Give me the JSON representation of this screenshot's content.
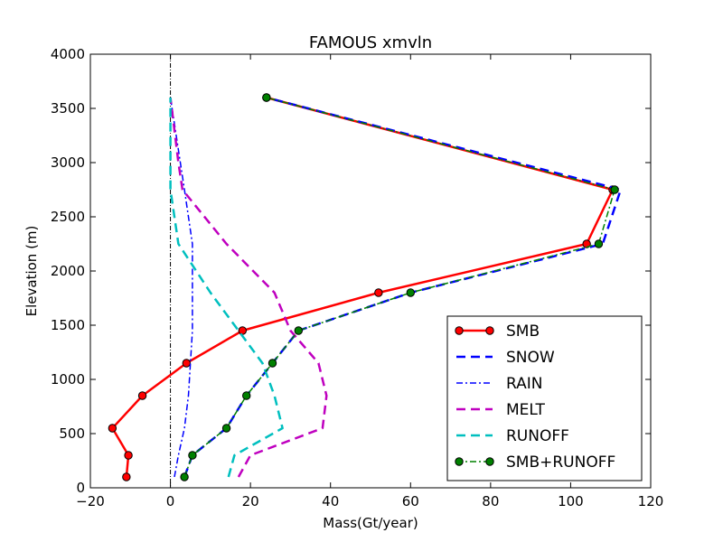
{
  "chart_data": {
    "type": "line",
    "title": "FAMOUS xmvln",
    "xlabel": "Mass(Gt/year)",
    "ylabel": "Elevation (m)",
    "xlim": [
      -20,
      120
    ],
    "ylim": [
      0,
      4000
    ],
    "xticks": [
      "−20",
      "0",
      "20",
      "40",
      "60",
      "80",
      "100",
      "120"
    ],
    "yticks": [
      "0",
      "500",
      "1000",
      "1500",
      "2000",
      "2500",
      "3000",
      "3500",
      "4000"
    ],
    "legend_position": "lower right",
    "zero_line": {
      "x": 0,
      "style": "dash-dot",
      "color": "#000000"
    },
    "series": [
      {
        "name": "SMB",
        "color": "#ff0000",
        "linestyle": "solid",
        "marker": "circle",
        "points": [
          [
            -11,
            100
          ],
          [
            -10.5,
            300
          ],
          [
            -14.5,
            550
          ],
          [
            -7,
            850
          ],
          [
            4,
            1150
          ],
          [
            18,
            1450
          ],
          [
            52,
            1800
          ],
          [
            104,
            2250
          ],
          [
            110.5,
            2750
          ],
          [
            24,
            3600
          ]
        ]
      },
      {
        "name": "SNOW",
        "color": "#0000ff",
        "linestyle": "dashed",
        "marker": "none",
        "points": [
          [
            3.5,
            100
          ],
          [
            5.5,
            300
          ],
          [
            14,
            550
          ],
          [
            19,
            850
          ],
          [
            25.5,
            1150
          ],
          [
            32,
            1450
          ],
          [
            60,
            1800
          ],
          [
            108,
            2250
          ],
          [
            112.5,
            2750
          ],
          [
            24,
            3600
          ]
        ]
      },
      {
        "name": "RAIN",
        "color": "#0000ff",
        "linestyle": "dashdot",
        "marker": "none",
        "points": [
          [
            1,
            100
          ],
          [
            2,
            300
          ],
          [
            3.5,
            550
          ],
          [
            4.5,
            850
          ],
          [
            5,
            1150
          ],
          [
            5.5,
            1450
          ],
          [
            5.5,
            1800
          ],
          [
            5.5,
            2250
          ],
          [
            3.5,
            2750
          ],
          [
            0,
            3600
          ]
        ]
      },
      {
        "name": "MELT",
        "color": "#bf00bf",
        "linestyle": "dashed",
        "marker": "none",
        "points": [
          [
            17,
            100
          ],
          [
            20,
            300
          ],
          [
            38,
            550
          ],
          [
            39,
            850
          ],
          [
            37,
            1150
          ],
          [
            30,
            1450
          ],
          [
            26,
            1800
          ],
          [
            14,
            2250
          ],
          [
            3,
            2750
          ],
          [
            2,
            3000
          ],
          [
            0,
            3600
          ]
        ]
      },
      {
        "name": "RUNOFF",
        "color": "#00bfbf",
        "linestyle": "dashed",
        "marker": "none",
        "points": [
          [
            14.5,
            100
          ],
          [
            16,
            300
          ],
          [
            28,
            550
          ],
          [
            26,
            850
          ],
          [
            23,
            1150
          ],
          [
            17,
            1450
          ],
          [
            10,
            1800
          ],
          [
            2,
            2250
          ],
          [
            0,
            2750
          ],
          [
            0,
            3600
          ]
        ]
      },
      {
        "name": "SMB+RUNOFF",
        "color": "#008000",
        "linestyle": "dashdot",
        "marker": "circle",
        "points": [
          [
            3.5,
            100
          ],
          [
            5.5,
            300
          ],
          [
            14,
            550
          ],
          [
            19,
            850
          ],
          [
            25.5,
            1150
          ],
          [
            32,
            1450
          ],
          [
            60,
            1800
          ],
          [
            107,
            2250
          ],
          [
            111,
            2750
          ],
          [
            24,
            3600
          ]
        ]
      }
    ]
  }
}
